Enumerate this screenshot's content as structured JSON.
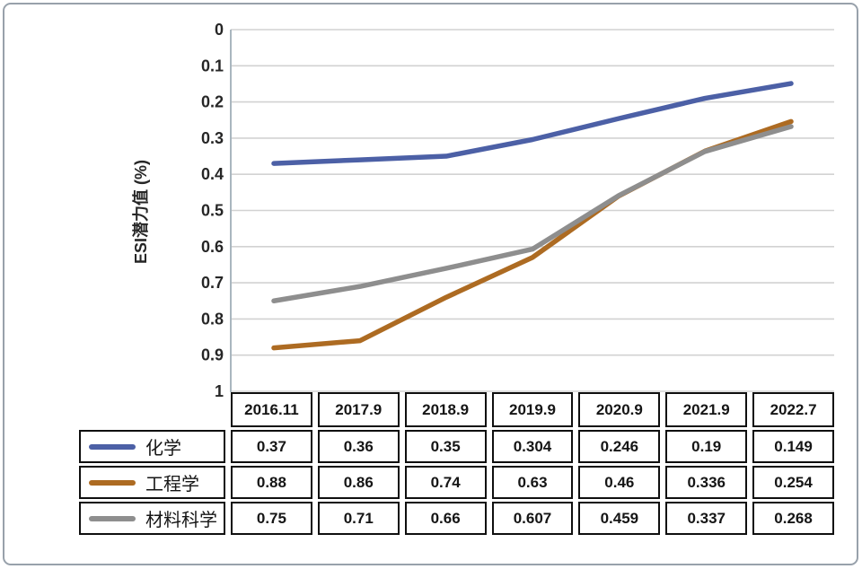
{
  "chart_data": {
    "type": "line",
    "title": "",
    "xlabel": "",
    "ylabel": "ESI潜力值 (%)",
    "categories": [
      "2016.11",
      "2017.9",
      "2018.9",
      "2019.9",
      "2020.9",
      "2021.9",
      "2022.7"
    ],
    "series": [
      {
        "name": "化学",
        "color": "#4c60a6",
        "values": [
          0.37,
          0.36,
          0.35,
          0.304,
          0.246,
          0.19,
          0.149
        ]
      },
      {
        "name": "工程学",
        "color": "#ad6b22",
        "values": [
          0.88,
          0.86,
          0.74,
          0.63,
          0.46,
          0.336,
          0.254
        ]
      },
      {
        "name": "材料科学",
        "color": "#8e8e8e",
        "values": [
          0.75,
          0.71,
          0.66,
          0.607,
          0.459,
          0.337,
          0.268
        ]
      }
    ],
    "y_axis": {
      "min": 0,
      "max": 1,
      "step": 0.1,
      "inverted": true,
      "tick_labels": [
        "0",
        "0.1",
        "0.2",
        "0.3",
        "0.4",
        "0.5",
        "0.6",
        "0.7",
        "0.8",
        "0.9",
        "1"
      ]
    },
    "grid": true,
    "legend_position": "table-left"
  },
  "colors": {
    "gridline": "#d2d2d2",
    "axis_line": "#a9b6bf",
    "tick_text": "#262626",
    "frame_border": "#98a1ab",
    "table_border": "#0f0f0f"
  }
}
